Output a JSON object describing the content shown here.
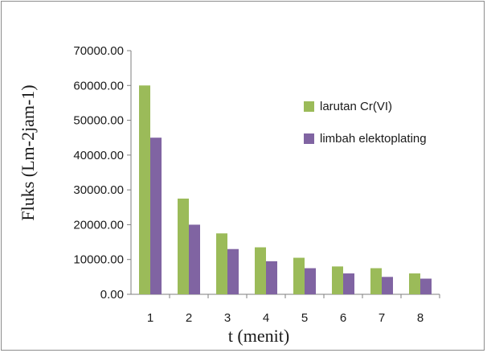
{
  "chart_data": {
    "type": "bar",
    "xlabel": "t (menit)",
    "ylabel": "Fluks (Lm-2jam-1)",
    "categories": [
      "1",
      "2",
      "3",
      "4",
      "5",
      "6",
      "7",
      "8"
    ],
    "ylim": [
      0,
      70000
    ],
    "yticks": [
      "0.00",
      "10000.00",
      "20000.00",
      "30000.00",
      "40000.00",
      "50000.00",
      "60000.00",
      "70000.00"
    ],
    "grid": false,
    "legend_position": "right",
    "series": [
      {
        "name": "larutan Cr(VI)",
        "color": "#9bbb59",
        "values": [
          60000,
          27500,
          17500,
          13500,
          10500,
          8000,
          7500,
          6000
        ]
      },
      {
        "name": "limbah elektoplating",
        "color": "#8064a2",
        "values": [
          45000,
          20000,
          13000,
          9500,
          7500,
          6000,
          5000,
          4500
        ]
      }
    ]
  }
}
